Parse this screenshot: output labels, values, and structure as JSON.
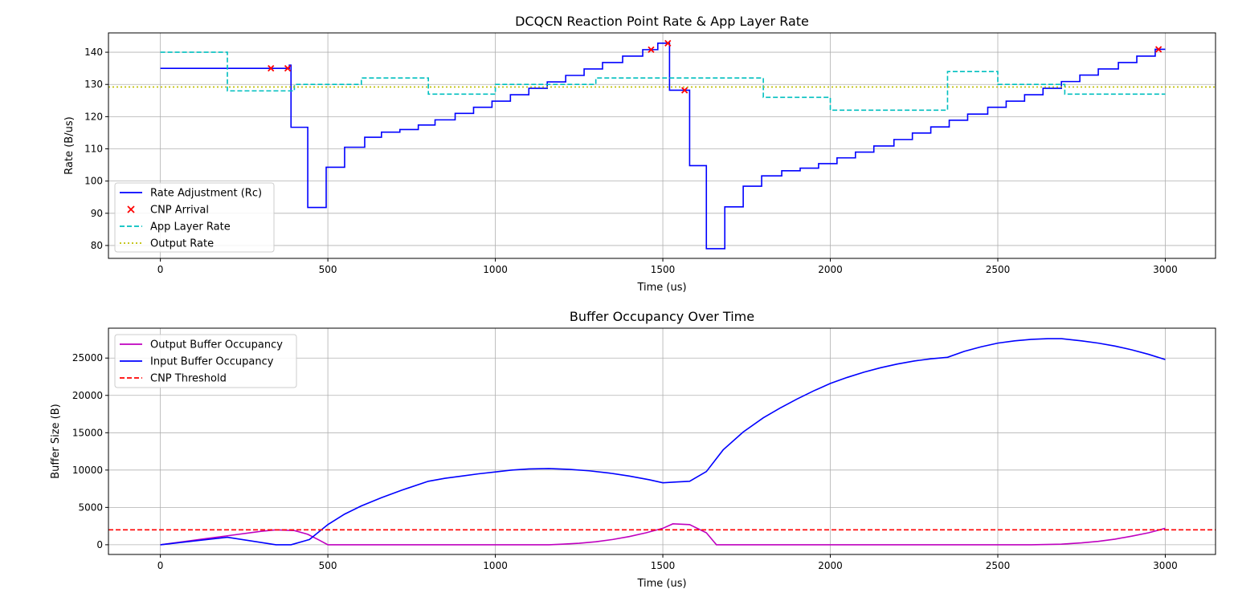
{
  "chart_data": [
    {
      "type": "line",
      "title": "DCQCN Reaction Point Rate & App Layer Rate",
      "xlabel": "Time (us)",
      "ylabel": "Rate (B/us)",
      "xlim": [
        -155,
        3150
      ],
      "ylim": [
        76,
        146
      ],
      "xticks": [
        "0",
        "500",
        "1000",
        "1500",
        "2000",
        "2500",
        "3000"
      ],
      "yticks": [
        "80",
        "90",
        "100",
        "110",
        "120",
        "130",
        "140"
      ],
      "grid": true,
      "legend_position": "lower-left",
      "series": [
        {
          "name": "Rate Adjustment (Rc)",
          "kind": "step",
          "color": "#0000ff",
          "x": [
            0,
            385,
            390,
            440,
            495,
            550,
            610,
            660,
            715,
            770,
            820,
            880,
            935,
            990,
            1045,
            1100,
            1155,
            1210,
            1265,
            1320,
            1380,
            1440,
            1485,
            1520,
            1545,
            1580,
            1630,
            1685,
            1740,
            1795,
            1855,
            1910,
            1965,
            2020,
            2075,
            2130,
            2190,
            2245,
            2300,
            2355,
            2410,
            2470,
            2525,
            2580,
            2635,
            2690,
            2745,
            2800,
            2860,
            2915,
            2970,
            3000
          ],
          "y": [
            135,
            136,
            116.7,
            91.8,
            104.3,
            110.5,
            113.6,
            115.2,
            116,
            117.4,
            119,
            121,
            122.9,
            124.8,
            126.8,
            128.8,
            130.8,
            132.8,
            134.8,
            136.8,
            138.8,
            140.8,
            142.8,
            128.2,
            128.2,
            104.8,
            79,
            92,
            98.4,
            101.6,
            103.2,
            104,
            105.4,
            107.2,
            109,
            110.9,
            112.9,
            114.9,
            116.8,
            118.9,
            120.8,
            122.9,
            124.8,
            126.8,
            128.8,
            130.9,
            132.9,
            134.8,
            136.8,
            138.8,
            140.9,
            140.9
          ]
        },
        {
          "name": "CNP Arrival",
          "kind": "scatter",
          "color": "#ff0000",
          "x": [
            330,
            380,
            1465,
            1515,
            1565,
            2980
          ],
          "y": [
            135,
            135,
            140.8,
            142.8,
            128.2,
            140.9
          ]
        },
        {
          "name": "App Layer Rate",
          "kind": "step",
          "color": "#00bfbf",
          "x": [
            0,
            200,
            400,
            600,
            800,
            1000,
            1300,
            1800,
            2000,
            2350,
            2500,
            2700,
            3000
          ],
          "y": [
            140,
            128,
            130,
            132,
            127,
            130,
            132,
            126,
            122,
            134,
            130,
            127,
            127
          ]
        },
        {
          "name": "Output Rate",
          "kind": "hline",
          "color": "#bfbf00",
          "y": 129.2
        }
      ]
    },
    {
      "type": "line",
      "title": "Buffer Occupancy Over Time",
      "xlabel": "Time (us)",
      "ylabel": "Buffer Size (B)",
      "xlim": [
        -155,
        3150
      ],
      "ylim": [
        -1300,
        29000
      ],
      "xticks": [
        "0",
        "500",
        "1000",
        "1500",
        "2000",
        "2500",
        "3000"
      ],
      "yticks": [
        "0",
        "5000",
        "10000",
        "15000",
        "20000",
        "25000"
      ],
      "grid": true,
      "legend_position": "top-left",
      "series": [
        {
          "name": "Output Buffer Occupancy",
          "kind": "line",
          "color": "#bf00bf",
          "x": [
            0,
            100,
            200,
            300,
            345,
            400,
            440,
            475,
            500,
            1100,
            1160,
            1200,
            1250,
            1300,
            1350,
            1400,
            1450,
            1500,
            1530,
            1580,
            1630,
            1660,
            1700,
            2600,
            2690,
            2750,
            2800,
            2850,
            2900,
            2950,
            3000
          ],
          "y": [
            0,
            600,
            1200,
            1800,
            2000,
            1900,
            1400,
            600,
            0,
            0,
            0,
            80,
            200,
            400,
            700,
            1100,
            1600,
            2200,
            2800,
            2700,
            1600,
            0,
            0,
            0,
            80,
            250,
            450,
            750,
            1150,
            1600,
            2200
          ]
        },
        {
          "name": "Input Buffer Occupancy",
          "kind": "line",
          "color": "#0000ff",
          "x": [
            0,
            200,
            345,
            390,
            445,
            500,
            550,
            600,
            660,
            720,
            800,
            850,
            900,
            950,
            1000,
            1050,
            1100,
            1160,
            1220,
            1280,
            1340,
            1400,
            1460,
            1500,
            1540,
            1580,
            1630,
            1680,
            1740,
            1800,
            1850,
            1900,
            1950,
            2000,
            2050,
            2100,
            2150,
            2200,
            2250,
            2300,
            2350,
            2400,
            2450,
            2500,
            2550,
            2600,
            2650,
            2690,
            2750,
            2800,
            2850,
            2900,
            2950,
            3000
          ],
          "y": [
            0,
            1000,
            0,
            0,
            700,
            2700,
            4100,
            5200,
            6300,
            7300,
            8500,
            8900,
            9200,
            9500,
            9750,
            10000,
            10150,
            10200,
            10100,
            9900,
            9600,
            9200,
            8700,
            8300,
            8400,
            8500,
            9800,
            12700,
            15100,
            17000,
            18300,
            19500,
            20600,
            21600,
            22400,
            23100,
            23700,
            24200,
            24600,
            24900,
            25100,
            25900,
            26500,
            27000,
            27300,
            27500,
            27600,
            27600,
            27300,
            27000,
            26600,
            26100,
            25500,
            24800
          ]
        },
        {
          "name": "CNP Threshold",
          "kind": "hline",
          "color": "#ff0000",
          "y": 2000
        }
      ]
    }
  ]
}
